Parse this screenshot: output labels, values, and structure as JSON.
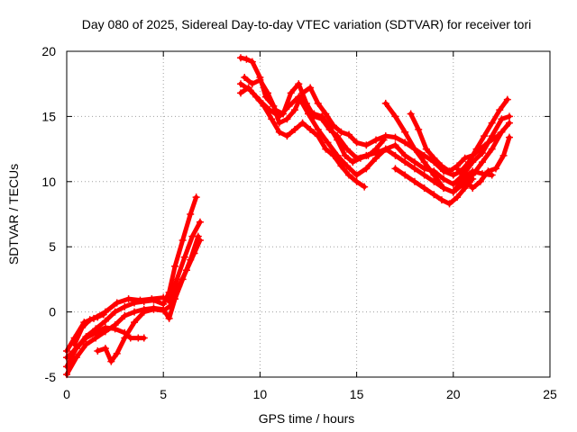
{
  "chart_data": {
    "type": "scatter",
    "title": "Day 080 of 2025, Sidereal Day-to-day VTEC variation (SDTVAR) for receiver tori",
    "xlabel": "GPS time / hours",
    "ylabel": "SDTVAR / TECUs",
    "xlim": [
      0,
      25
    ],
    "ylim": [
      -5,
      20
    ],
    "xticks": [
      0,
      5,
      10,
      15,
      20,
      25
    ],
    "yticks": [
      -5,
      0,
      5,
      10,
      15,
      20
    ],
    "xtick_labels": [
      "0",
      "5",
      "10",
      "15",
      "20",
      "25"
    ],
    "ytick_labels": [
      "-5",
      "0",
      "5",
      "10",
      "15",
      "20"
    ],
    "grid": true,
    "marker": "+",
    "color": "#ff0000",
    "series": [
      {
        "x": [
          0.0,
          0.5,
          1.0,
          1.5,
          2.0,
          2.5,
          3.0,
          3.5,
          4.0,
          4.5,
          5.0,
          5.3,
          5.6,
          6.0,
          6.4,
          6.7
        ],
        "y": [
          -4.2,
          -2.8,
          -1.9,
          -1.3,
          -0.7,
          0.0,
          0.4,
          0.7,
          0.8,
          0.9,
          0.6,
          1.5,
          3.5,
          5.5,
          7.5,
          8.8
        ]
      },
      {
        "x": [
          0.0,
          0.4,
          0.9,
          1.4,
          2.0,
          2.6,
          3.2,
          3.8,
          4.4,
          5.0,
          5.3,
          5.7,
          6.1,
          6.5,
          6.9
        ],
        "y": [
          -3.0,
          -2.0,
          -0.8,
          -0.5,
          0.0,
          0.7,
          1.0,
          0.9,
          1.0,
          1.1,
          0.8,
          2.5,
          4.2,
          5.8,
          6.9
        ]
      },
      {
        "x": [
          0.0,
          0.5,
          1.0,
          1.5,
          2.0,
          2.5,
          3.0,
          3.5,
          4.0,
          4.5,
          5.0,
          5.3,
          5.6,
          6.0,
          6.4,
          6.8
        ],
        "y": [
          -4.8,
          -3.5,
          -2.5,
          -2.0,
          -1.5,
          -1.0,
          -0.3,
          0.0,
          0.2,
          0.3,
          0.2,
          -0.5,
          1.0,
          2.5,
          4.0,
          5.8
        ]
      },
      {
        "x": [
          0.0,
          0.5,
          1.0,
          1.5,
          2.0,
          2.5,
          3.0,
          3.3,
          3.7,
          4.0
        ],
        "y": [
          -3.5,
          -2.8,
          -2.0,
          -1.6,
          -1.2,
          -1.3,
          -1.6,
          -2.0,
          -2.0,
          -2.0
        ]
      },
      {
        "x": [
          1.6,
          2.0,
          2.3,
          2.6,
          3.0,
          3.5,
          4.0,
          4.5,
          5.0,
          5.4,
          5.8,
          6.2,
          6.6,
          6.9
        ],
        "y": [
          -3.0,
          -2.8,
          -3.8,
          -3.2,
          -2.0,
          -0.8,
          0.0,
          0.2,
          0.1,
          0.5,
          2.0,
          3.2,
          4.5,
          5.5
        ]
      },
      {
        "x": [
          0.4,
          0.8,
          1.2,
          1.6,
          1.9
        ],
        "y": [
          -2.5,
          -1.2,
          -0.6,
          -0.4,
          -0.2
        ]
      },
      {
        "x": [
          9.0,
          9.3,
          9.6,
          10.0,
          10.3,
          10.7,
          11.0,
          11.4,
          11.8,
          12.2,
          12.6,
          13.0,
          13.4,
          13.8,
          14.2,
          14.6,
          15.0,
          15.5,
          16.0,
          16.5,
          17.0,
          17.5,
          18.0,
          18.5,
          19.0,
          19.5,
          20.0,
          20.4,
          20.8,
          21.2,
          21.6,
          22.0,
          22.4,
          22.8
        ],
        "y": [
          19.5,
          19.4,
          19.2,
          18.0,
          16.5,
          15.8,
          14.5,
          14.8,
          15.5,
          16.8,
          17.2,
          16.0,
          15.2,
          14.3,
          13.8,
          13.6,
          13.0,
          12.8,
          13.2,
          13.5,
          13.4,
          13.0,
          12.5,
          12.0,
          11.5,
          10.8,
          10.5,
          10.8,
          11.5,
          12.5,
          13.5,
          14.5,
          15.5,
          16.3
        ]
      },
      {
        "x": [
          9.2,
          9.6,
          10.0,
          10.4,
          10.8,
          11.2,
          11.6,
          12.0,
          12.4,
          12.8,
          13.2,
          13.6,
          14.0,
          14.5,
          15.0,
          15.5,
          16.0,
          16.5,
          17.0,
          17.5,
          18.0,
          18.5,
          19.0,
          19.5,
          20.0,
          20.5,
          21.0,
          21.5,
          22.0,
          22.5,
          22.9
        ],
        "y": [
          18.0,
          17.5,
          17.8,
          16.8,
          15.5,
          15.2,
          16.8,
          17.5,
          16.0,
          15.0,
          14.8,
          14.0,
          13.5,
          12.5,
          11.8,
          12.0,
          12.2,
          12.5,
          12.8,
          12.0,
          11.5,
          11.0,
          10.8,
          10.2,
          9.8,
          10.5,
          11.5,
          12.2,
          13.5,
          14.8,
          15.0
        ]
      },
      {
        "x": [
          9.0,
          9.5,
          10.0,
          10.5,
          11.0,
          11.5,
          12.0,
          12.5,
          13.0,
          13.5,
          14.0,
          14.5,
          15.0,
          15.5,
          16.0,
          16.5,
          17.0,
          17.5,
          18.0,
          18.5,
          19.0,
          19.5,
          20.0,
          20.5,
          21.0,
          21.5,
          22.0,
          22.5,
          22.9
        ],
        "y": [
          17.5,
          17.0,
          16.2,
          15.5,
          15.0,
          15.8,
          16.5,
          15.2,
          14.0,
          13.0,
          12.0,
          11.2,
          10.5,
          11.0,
          11.8,
          12.5,
          12.0,
          11.5,
          11.0,
          10.5,
          10.0,
          9.5,
          9.2,
          9.8,
          10.5,
          11.5,
          12.5,
          13.8,
          14.5
        ]
      },
      {
        "x": [
          9.0,
          9.4,
          9.8,
          10.2,
          10.6,
          11.0,
          11.4,
          11.8,
          12.2,
          12.6,
          13.0,
          13.4,
          13.8,
          14.2,
          14.6,
          15.0,
          15.4
        ],
        "y": [
          16.8,
          17.2,
          16.5,
          15.8,
          14.8,
          13.8,
          13.5,
          14.0,
          14.5,
          14.0,
          13.5,
          12.5,
          12.0,
          11.2,
          10.5,
          10.0,
          9.6
        ]
      },
      {
        "x": [
          12.8,
          13.2,
          13.6,
          14.0,
          14.4,
          14.8,
          15.2,
          15.6,
          16.0,
          16.4
        ],
        "y": [
          15.2,
          15.0,
          14.2,
          13.2,
          12.0,
          11.5,
          11.8,
          12.0,
          12.5,
          13.2
        ]
      },
      {
        "x": [
          16.5,
          17.0,
          17.5,
          18.0,
          18.5,
          19.0,
          19.5,
          20.0,
          20.5,
          21.0,
          21.5,
          22.0
        ],
        "y": [
          16.0,
          15.0,
          13.8,
          12.5,
          11.5,
          10.5,
          9.5,
          9.2,
          10.2,
          10.8,
          10.6,
          10.5
        ]
      },
      {
        "x": [
          17.0,
          17.5,
          18.0,
          18.5,
          19.0,
          19.4,
          19.8,
          20.2,
          20.6,
          21.0
        ],
        "y": [
          11.0,
          10.5,
          10.0,
          9.5,
          9.0,
          8.6,
          8.3,
          8.8,
          9.5,
          10.2
        ]
      },
      {
        "x": [
          17.8,
          18.2,
          18.6,
          19.0,
          19.4,
          19.8,
          20.2,
          20.6,
          21.0,
          21.4,
          21.8,
          22.3
        ],
        "y": [
          15.2,
          14.0,
          12.5,
          11.8,
          11.2,
          10.8,
          11.2,
          11.8,
          12.0,
          12.5,
          13.0,
          13.5
        ]
      },
      {
        "x": [
          20.2,
          20.6,
          21.0,
          21.4,
          21.8,
          22.2,
          22.6,
          22.9
        ],
        "y": [
          11.0,
          10.2,
          9.5,
          10.0,
          10.8,
          11.0,
          12.0,
          13.4
        ]
      }
    ]
  }
}
